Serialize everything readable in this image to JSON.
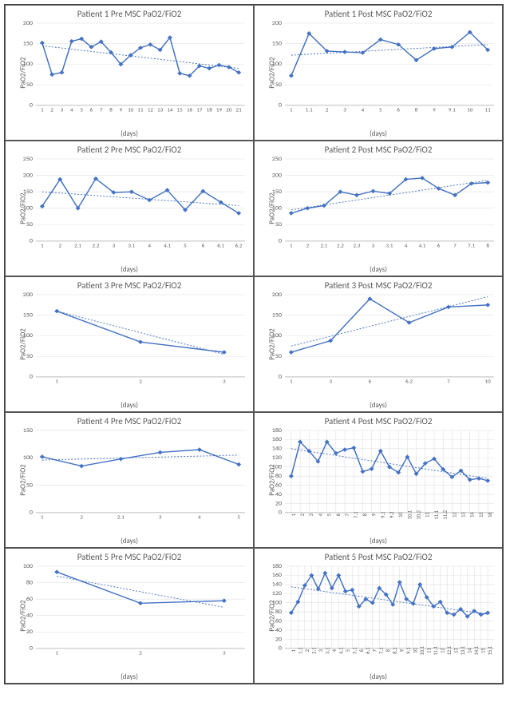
{
  "line_color": "#4472c4",
  "grid_color": "#d9d9d9",
  "marker_size": 3,
  "charts": [
    {
      "title": "Patient  1 Pre MSC PaO2/FiO2",
      "ylabel": "PaO2/FiO2",
      "xlabel": "(days)",
      "ymin": 0,
      "ymax": 200,
      "ystep": 50,
      "vgrid": false,
      "xrotate": false,
      "xticks": [
        "1",
        "2",
        "3",
        "4",
        "5",
        "6",
        "7",
        "8",
        "9",
        "10",
        "11",
        "12",
        "13",
        "14",
        "15",
        "16",
        "17",
        "18",
        "19",
        "20",
        "21"
      ],
      "values": [
        152,
        75,
        80,
        156,
        162,
        142,
        155,
        129,
        100,
        122,
        140,
        148,
        135,
        165,
        78,
        72,
        96,
        90,
        98,
        93,
        80
      ],
      "trend": [
        145,
        90
      ]
    },
    {
      "title": "Patient 1 Post MSC PaO2/FiO2",
      "ylabel": "PaO2/FiO2",
      "xlabel": "(days)",
      "ymin": 0,
      "ymax": 200,
      "ystep": 50,
      "vgrid": false,
      "xrotate": false,
      "xticks": [
        "1",
        "1.1",
        "2",
        "3",
        "4",
        "5",
        "6",
        "8",
        "9",
        "9.1",
        "10",
        "11"
      ],
      "values": [
        72,
        175,
        132,
        130,
        128,
        160,
        148,
        110,
        138,
        142,
        178,
        135
      ],
      "trend": [
        122,
        148
      ]
    },
    {
      "title": "Patient  2 Pre MSC PaO2/FiO2",
      "ylabel": "PaO2/FiO2",
      "xlabel": "(days)",
      "ymin": 0,
      "ymax": 250,
      "ystep": 50,
      "vgrid": false,
      "xrotate": false,
      "xticks": [
        "1",
        "2",
        "2.1",
        "2.2",
        "3",
        "3.1",
        "4",
        "4.1",
        "5",
        "6",
        "6.1",
        "6.2"
      ],
      "values": [
        106,
        188,
        100,
        190,
        148,
        150,
        125,
        155,
        95,
        152,
        118,
        85
      ],
      "trend": [
        150,
        108
      ]
    },
    {
      "title": "Patient  2 Post MSC PaO2/FiO2",
      "ylabel": "PaO2/FiO2",
      "xlabel": "(days)",
      "ymin": 0,
      "ymax": 250,
      "ystep": 50,
      "vgrid": false,
      "xrotate": false,
      "xticks": [
        "1",
        "2",
        "2.1",
        "2.2",
        "2.3",
        "3",
        "3.1",
        "4",
        "4.1",
        "6",
        "7",
        "7.1",
        "8"
      ],
      "values": [
        85,
        100,
        108,
        150,
        140,
        152,
        145,
        188,
        192,
        160,
        140,
        175,
        178
      ],
      "trend": [
        95,
        185
      ]
    },
    {
      "title": "Patient 3 Pre MSC PaO2/FiO2",
      "ylabel": "PaO2/FiO2",
      "xlabel": "(days)",
      "ymin": 0,
      "ymax": 200,
      "ystep": 50,
      "vgrid": false,
      "xrotate": false,
      "xticks": [
        "1",
        "2",
        "3"
      ],
      "values": [
        160,
        85,
        60
      ],
      "trend": [
        160,
        55
      ]
    },
    {
      "title": "Patient  3 Post MSC PaO2/FiO2",
      "ylabel": "PaO2/FiO2",
      "xlabel": "(days)",
      "ymin": 0,
      "ymax": 200,
      "ystep": 50,
      "vgrid": false,
      "xrotate": false,
      "xticks": [
        "1",
        "3",
        "6",
        "6.2",
        "7",
        "10"
      ],
      "values": [
        60,
        88,
        190,
        132,
        170,
        175
      ],
      "trend": [
        75,
        195
      ]
    },
    {
      "title": "Patient  4 Pre MSC PaO2/FiO2",
      "ylabel": "PaO2/FiO2",
      "xlabel": "(days)",
      "ymin": 0,
      "ymax": 150,
      "ystep": 50,
      "vgrid": false,
      "xrotate": false,
      "xticks": [
        "1",
        "2",
        "2.1",
        "3",
        "4",
        "5"
      ],
      "values": [
        102,
        85,
        98,
        110,
        115,
        88
      ],
      "trend": [
        96,
        105
      ]
    },
    {
      "title": "Patient  4 Post MSC PaO2/FiO2",
      "ylabel": "PaO2/FiO2",
      "xlabel": "(days)",
      "ymin": 0,
      "ymax": 180,
      "ystep": 20,
      "vgrid": true,
      "xrotate": true,
      "xticks": [
        "1",
        "2",
        "3",
        "4",
        "5",
        "6",
        "7",
        "7.1",
        "8",
        "9",
        "9.1",
        "9.2",
        "10",
        "10.1",
        "10.2",
        "11",
        "11.1",
        "11.2",
        "12",
        "13",
        "14",
        "15",
        "16"
      ],
      "values": [
        80,
        155,
        135,
        112,
        155,
        130,
        138,
        142,
        90,
        96,
        135,
        100,
        88,
        122,
        85,
        108,
        118,
        95,
        78,
        92,
        72,
        75,
        70
      ],
      "trend": [
        140,
        75
      ]
    },
    {
      "title": "Patient  5 Pre MSC PaO2/FiO2",
      "ylabel": "PaO2/FiO2",
      "xlabel": "(days)",
      "ymin": 0,
      "ymax": 100,
      "ystep": 20,
      "vgrid": false,
      "xrotate": false,
      "xticks": [
        "1",
        "2",
        "3"
      ],
      "values": [
        93,
        55,
        58
      ],
      "trend": [
        88,
        50
      ]
    },
    {
      "title": "Patient  5 Post MSC PaO2/FiO2",
      "ylabel": "PaO2/FiO2",
      "xlabel": "(days)",
      "ymin": 0,
      "ymax": 180,
      "ystep": 20,
      "vgrid": true,
      "xrotate": true,
      "xticks": [
        "1",
        "1.1",
        "2",
        "2.1",
        "3",
        "3.1",
        "4",
        "4.1",
        "5",
        "5.1",
        "6",
        "6.1",
        "7",
        "7.1",
        "8",
        "8.1",
        "9",
        "9.1",
        "10",
        "10.1",
        "11",
        "11.1",
        "12",
        "12.1",
        "13",
        "13.1",
        "14",
        "14.1",
        "15",
        "15.1"
      ],
      "values": [
        78,
        102,
        138,
        160,
        130,
        165,
        132,
        160,
        125,
        128,
        92,
        108,
        100,
        132,
        118,
        96,
        145,
        108,
        98,
        140,
        112,
        92,
        102,
        78,
        74,
        86,
        70,
        82,
        74,
        78
      ],
      "trend": [
        135,
        75
      ]
    }
  ]
}
